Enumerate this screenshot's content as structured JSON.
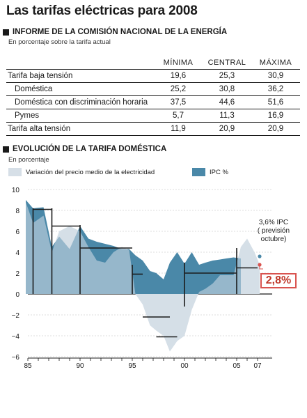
{
  "title": "Las tarifas eléctricas para 2008",
  "section1": {
    "heading": "INFORME DE LA COMISIÓN NACIONAL DE LA ENERGÍA",
    "subtitle": "En porcentaje sobre la tarifa actual",
    "columns": [
      "MÍNIMA",
      "CENTRAL",
      "MÁXIMA"
    ],
    "rows": [
      {
        "label": "Tarifa baja tensión",
        "values": [
          "19,6",
          "25,3",
          "30,9"
        ],
        "indent": false
      },
      {
        "label": "Doméstica",
        "values": [
          "25,2",
          "30,8",
          "36,2"
        ],
        "indent": true
      },
      {
        "label": "Doméstica con discriminación horaria",
        "values": [
          "37,5",
          "44,6",
          "51,6"
        ],
        "indent": true
      },
      {
        "label": "Pymes",
        "values": [
          "5,7",
          "11,3",
          "16,9"
        ],
        "indent": true
      },
      {
        "label": "Tarifa alta tensión",
        "values": [
          "11,9",
          "20,9",
          "20,9"
        ],
        "indent": false
      }
    ]
  },
  "section2": {
    "heading": "EVOLUCIÓN DE LA TARIFA DOMÉSTICA",
    "subtitle": "En porcentaje",
    "legend": [
      {
        "label": "Variación del precio medio de la electricidad",
        "color": "#d6dfe7"
      },
      {
        "label": "IPC %",
        "color": "#4a88a8"
      }
    ],
    "note_lines": [
      "3,6% IPC",
      "( previsión",
      "octubre)"
    ],
    "highlight": "2,8%"
  },
  "chart_data": {
    "type": "area",
    "ylim": [
      -6,
      10
    ],
    "yticks": [
      -6,
      -4,
      -2,
      0,
      2,
      4,
      6,
      8,
      10
    ],
    "ytick_labels": [
      "−6",
      "−4",
      "−2",
      "0",
      "2",
      "4",
      "6",
      "8",
      "10"
    ],
    "xlim": [
      1985,
      2008
    ],
    "xtick_labels": [
      {
        "x": 1985,
        "label": "85"
      },
      {
        "x": 1990,
        "label": "90"
      },
      {
        "x": 1995,
        "label": "95"
      },
      {
        "x": 2000,
        "label": "00"
      },
      {
        "x": 2005,
        "label": "05"
      },
      {
        "x": 2007,
        "label": "07"
      }
    ],
    "series": [
      {
        "name": "Variación del precio medio de la electricidad",
        "color": "#d6dfe7",
        "x": [
          1984.8,
          1985.5,
          1986.5,
          1987.3,
          1988,
          1989,
          1990,
          1990.8,
          1991.6,
          1992.4,
          1993.2,
          1994,
          1994.7,
          1995.3,
          1996,
          1996.7,
          1997.3,
          1998,
          1998.6,
          1999.3,
          2000,
          2000.7,
          2001.4,
          2002,
          2002.7,
          2003.4,
          2004,
          2004.7,
          2005.4,
          2006,
          2006.7,
          2007.2
        ],
        "values": [
          8.8,
          6.8,
          7.5,
          4.0,
          6.0,
          6.5,
          6.0,
          4.5,
          3.2,
          3.0,
          4.0,
          4.5,
          4.2,
          0,
          -1.0,
          -3.0,
          -3.5,
          -4.0,
          -5.5,
          -4.5,
          -4.0,
          -1.5,
          0.2,
          0.5,
          1.0,
          1.8,
          1.8,
          1.8,
          4.5,
          5.3,
          4.0,
          2.8
        ]
      },
      {
        "name": "IPC %",
        "color": "#4a88a8",
        "x": [
          1984.8,
          1985.5,
          1986.5,
          1987.3,
          1988,
          1989,
          1990,
          1990.8,
          1991.6,
          1992.4,
          1993.2,
          1994,
          1994.7,
          1995.3,
          1996,
          1996.7,
          1997.3,
          1998,
          1998.6,
          1999.3,
          2000,
          2000.7,
          2001.4,
          2002,
          2002.7,
          2003.4,
          2004,
          2004.7,
          2005.4
        ],
        "values": [
          9.0,
          8.2,
          8.3,
          4.5,
          5.5,
          4.3,
          6.5,
          5.3,
          5.0,
          4.8,
          4.6,
          4.3,
          4.3,
          3.7,
          3.2,
          2.2,
          2.0,
          1.4,
          3.0,
          4.0,
          2.9,
          4.0,
          2.8,
          3.0,
          3.2,
          3.3,
          3.4,
          3.5,
          3.4
        ]
      }
    ],
    "markers": [
      {
        "x": 2007.2,
        "y": 3.6,
        "color": "#4a88a8"
      },
      {
        "x": 2007.2,
        "y": 2.8,
        "color": "#d9534f"
      }
    ]
  }
}
